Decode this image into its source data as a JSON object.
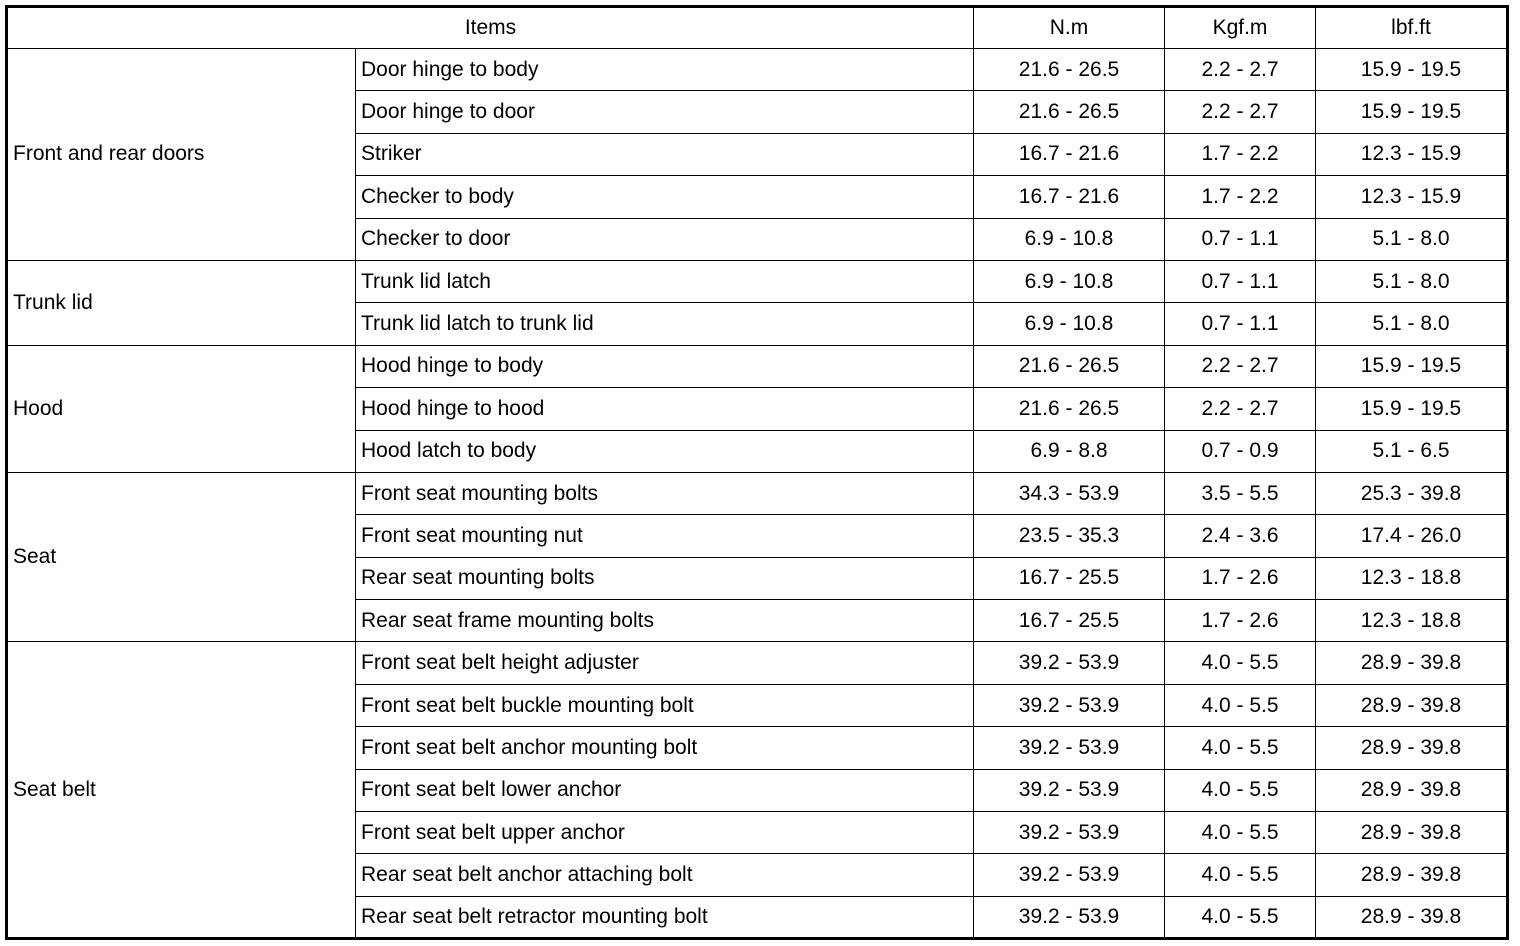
{
  "table": {
    "headers": [
      "Items",
      "N.m",
      "Kgf.m",
      "lbf.ft"
    ],
    "groups": [
      {
        "name": "Front and rear doors",
        "rows": [
          {
            "item": "Door hinge to body",
            "nm": "21.6 - 26.5",
            "kgfm": "2.2 - 2.7",
            "lbfft": "15.9 - 19.5"
          },
          {
            "item": "Door hinge to door",
            "nm": "21.6 - 26.5",
            "kgfm": "2.2 - 2.7",
            "lbfft": "15.9 - 19.5"
          },
          {
            "item": "Striker",
            "nm": "16.7 - 21.6",
            "kgfm": "1.7 - 2.2",
            "lbfft": "12.3 - 15.9"
          },
          {
            "item": "Checker to body",
            "nm": "16.7 - 21.6",
            "kgfm": "1.7 - 2.2",
            "lbfft": "12.3 - 15.9"
          },
          {
            "item": "Checker to door",
            "nm": "6.9 - 10.8",
            "kgfm": "0.7 - 1.1",
            "lbfft": "5.1 - 8.0"
          }
        ]
      },
      {
        "name": "Trunk lid",
        "rows": [
          {
            "item": "Trunk lid latch",
            "nm": "6.9 - 10.8",
            "kgfm": "0.7 - 1.1",
            "lbfft": "5.1 - 8.0"
          },
          {
            "item": "Trunk lid latch to trunk lid",
            "nm": "6.9 - 10.8",
            "kgfm": "0.7 - 1.1",
            "lbfft": "5.1 - 8.0"
          }
        ]
      },
      {
        "name": "Hood",
        "rows": [
          {
            "item": "Hood hinge to body",
            "nm": "21.6 - 26.5",
            "kgfm": "2.2 - 2.7",
            "lbfft": "15.9 - 19.5"
          },
          {
            "item": "Hood hinge to hood",
            "nm": "21.6 - 26.5",
            "kgfm": "2.2 - 2.7",
            "lbfft": "15.9 - 19.5"
          },
          {
            "item": "Hood latch to body",
            "nm": "6.9 - 8.8",
            "kgfm": "0.7 - 0.9",
            "lbfft": "5.1 - 6.5"
          }
        ]
      },
      {
        "name": "Seat",
        "rows": [
          {
            "item": "Front seat mounting bolts",
            "nm": "34.3 - 53.9",
            "kgfm": "3.5 - 5.5",
            "lbfft": "25.3 - 39.8"
          },
          {
            "item": "Front seat mounting nut",
            "nm": "23.5 - 35.3",
            "kgfm": "2.4 - 3.6",
            "lbfft": "17.4 - 26.0"
          },
          {
            "item": "Rear seat mounting bolts",
            "nm": "16.7 - 25.5",
            "kgfm": "1.7 - 2.6",
            "lbfft": "12.3 - 18.8"
          },
          {
            "item": "Rear seat frame mounting bolts",
            "nm": "16.7 - 25.5",
            "kgfm": "1.7 - 2.6",
            "lbfft": "12.3 - 18.8"
          }
        ]
      },
      {
        "name": "Seat belt",
        "rows": [
          {
            "item": "Front seat belt height adjuster",
            "nm": "39.2 - 53.9",
            "kgfm": "4.0 - 5.5",
            "lbfft": "28.9 - 39.8"
          },
          {
            "item": "Front seat belt buckle mounting bolt",
            "nm": "39.2 - 53.9",
            "kgfm": "4.0 - 5.5",
            "lbfft": "28.9 - 39.8"
          },
          {
            "item": "Front seat belt anchor mounting bolt",
            "nm": "39.2 - 53.9",
            "kgfm": "4.0 - 5.5",
            "lbfft": "28.9 - 39.8"
          },
          {
            "item": "Front seat belt lower anchor",
            "nm": "39.2 - 53.9",
            "kgfm": "4.0 - 5.5",
            "lbfft": "28.9 - 39.8"
          },
          {
            "item": "Front seat belt upper anchor",
            "nm": "39.2 - 53.9",
            "kgfm": "4.0 - 5.5",
            "lbfft": "28.9 - 39.8"
          },
          {
            "item": "Rear seat belt anchor attaching bolt",
            "nm": "39.2 - 53.9",
            "kgfm": "4.0 - 5.5",
            "lbfft": "28.9 - 39.8"
          },
          {
            "item": "Rear seat belt retractor mounting bolt",
            "nm": "39.2 - 53.9",
            "kgfm": "4.0 - 5.5",
            "lbfft": "28.9 - 39.8"
          }
        ]
      }
    ]
  }
}
